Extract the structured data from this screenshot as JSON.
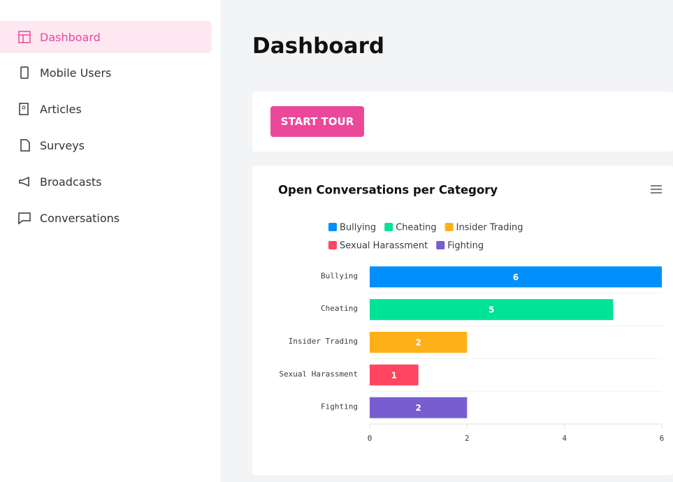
{
  "sidebar": {
    "items": [
      "Dashboard",
      "Mobile Users",
      "Articles",
      "Surveys",
      "Broadcasts",
      "Conversations"
    ]
  },
  "page": {
    "title": "Dashboard",
    "button": "START TOUR"
  },
  "chart_data": {
    "type": "bar",
    "orientation": "horizontal",
    "title": "Open Conversations per Category",
    "categories": [
      "Bullying",
      "Cheating",
      "Insider Trading",
      "Sexual Harassment",
      "Fighting"
    ],
    "values": [
      6,
      5,
      2,
      1,
      2
    ],
    "colors": [
      "#008ffb",
      "#00e396",
      "#feb019",
      "#ff4560",
      "#775dd0"
    ],
    "xlim": [
      0,
      6
    ],
    "xticks": [
      0,
      2,
      4,
      6
    ],
    "legend": "top"
  }
}
